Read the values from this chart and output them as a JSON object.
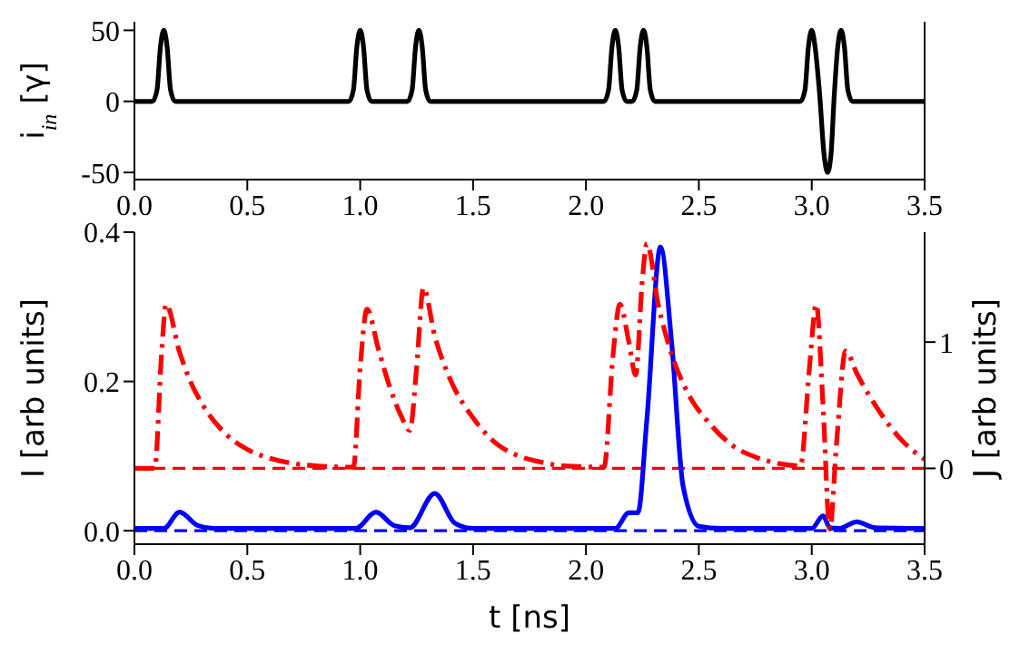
{
  "chart_data": [
    {
      "type": "line",
      "ylabel": "i$_{in}$ [γ]",
      "color": "#000000",
      "xlim": [
        0,
        3.5
      ],
      "xticks": [
        {
          "value": 0,
          "label": "0.0"
        },
        0.5,
        {
          "value": 1,
          "label": "1.0"
        },
        1.5,
        {
          "value": 2,
          "label": "2.0"
        },
        2.5,
        {
          "value": 3,
          "label": "3.0"
        },
        3.5
      ],
      "ylim": [
        -55,
        56
      ],
      "yticks": [
        -50,
        0,
        50
      ],
      "x": [
        0,
        0.08,
        0.1,
        0.115,
        0.13,
        0.145,
        0.16,
        0.18,
        0.95,
        0.97,
        0.985,
        1.0,
        1.015,
        1.03,
        1.05,
        1.21,
        1.23,
        1.245,
        1.26,
        1.275,
        1.29,
        1.31,
        2.08,
        2.1,
        2.115,
        2.13,
        2.145,
        2.16,
        2.18,
        2.205,
        2.225,
        2.24,
        2.255,
        2.27,
        2.285,
        2.305,
        2.95,
        2.97,
        2.985,
        3.0,
        3.015,
        3.035,
        3.055,
        3.07,
        3.085,
        3.1,
        3.115,
        3.13,
        3.145,
        3.16,
        3.18,
        3.5
      ],
      "values": [
        0,
        0,
        8,
        38,
        50,
        38,
        8,
        0,
        0,
        8,
        38,
        50,
        38,
        8,
        0,
        0,
        8,
        38,
        50,
        38,
        8,
        0,
        0,
        8,
        38,
        50,
        38,
        8,
        0,
        0,
        8,
        38,
        50,
        38,
        8,
        0,
        0,
        8,
        38,
        50,
        38,
        5,
        -38,
        -50,
        -38,
        5,
        38,
        50,
        38,
        8,
        0,
        0
      ]
    },
    {
      "type": "line",
      "xlabel": "t [ns]",
      "ylabel": "I [arb units]",
      "y2label": "J [arb units]",
      "xlim": [
        0,
        3.5
      ],
      "xticks": [
        {
          "value": 0,
          "label": "0.0"
        },
        0.5,
        {
          "value": 1,
          "label": "1.0"
        },
        1.5,
        {
          "value": 2,
          "label": "2.0"
        },
        2.5,
        {
          "value": 3,
          "label": "3.0"
        },
        3.5
      ],
      "ylim": [
        -0.018,
        0.4
      ],
      "yticks": [
        {
          "value": 0,
          "label": "0.0"
        },
        0.2,
        0.4
      ],
      "y2lim": [
        -0.6,
        1.87
      ],
      "y2ticks": [
        0,
        1
      ],
      "ref_lines": [
        {
          "axis": "y",
          "value": 0,
          "color": "#0000ff",
          "line_style": "dashed"
        },
        {
          "axis": "y2",
          "value": 0,
          "color": "#ff0000",
          "line_style": "dashed"
        }
      ],
      "series": [
        {
          "color": "#0000ff",
          "line_style": "solid",
          "x": [
            0,
            0.13,
            0.2,
            0.28,
            0.35,
            0.98,
            1.07,
            1.15,
            1.22,
            1.33,
            1.42,
            1.5,
            2.13,
            2.19,
            2.23,
            2.27,
            2.33,
            2.38,
            2.43,
            2.5,
            2.6,
            3.0,
            3.05,
            3.08,
            3.12,
            3.2,
            3.28,
            3.5
          ],
          "values": [
            0.003,
            0.003,
            0.025,
            0.007,
            0.003,
            0.003,
            0.025,
            0.007,
            0.004,
            0.05,
            0.01,
            0.003,
            0.003,
            0.024,
            0.024,
            0.15,
            0.38,
            0.25,
            0.06,
            0.006,
            0.003,
            0.003,
            0.02,
            0.004,
            0.003,
            0.012,
            0.004,
            0.003
          ]
        },
        {
          "color": "#ff0000",
          "axis": "y2",
          "line_style": "dashdot",
          "x": [
            0,
            0.09,
            0.12,
            0.14,
            0.2,
            0.25,
            0.3,
            0.4,
            0.5,
            0.6,
            0.7,
            0.8,
            0.97,
            1.0,
            1.03,
            1.08,
            1.13,
            1.18,
            1.22,
            1.25,
            1.28,
            1.33,
            1.4,
            1.5,
            1.6,
            1.7,
            1.8,
            1.9,
            2.08,
            2.12,
            2.15,
            2.19,
            2.22,
            2.25,
            2.27,
            2.32,
            2.38,
            2.45,
            2.55,
            2.65,
            2.75,
            2.85,
            2.95,
            2.99,
            3.02,
            3.05,
            3.08,
            3.11,
            3.15,
            3.2,
            3.3,
            3.4,
            3.5
          ],
          "values": [
            0,
            0,
            0.9,
            1.3,
            0.92,
            0.68,
            0.51,
            0.28,
            0.15,
            0.08,
            0.04,
            0.02,
            0.01,
            0.8,
            1.26,
            0.95,
            0.65,
            0.42,
            0.3,
            0.8,
            1.43,
            1.05,
            0.7,
            0.4,
            0.2,
            0.1,
            0.05,
            0.02,
            0.01,
            0.9,
            1.3,
            1.0,
            0.74,
            1.5,
            1.78,
            1.3,
            0.9,
            0.6,
            0.35,
            0.18,
            0.09,
            0.04,
            0.02,
            0.8,
            1.3,
            0.5,
            -0.48,
            0.2,
            0.93,
            0.75,
            0.45,
            0.22,
            0.07
          ]
        }
      ]
    }
  ]
}
